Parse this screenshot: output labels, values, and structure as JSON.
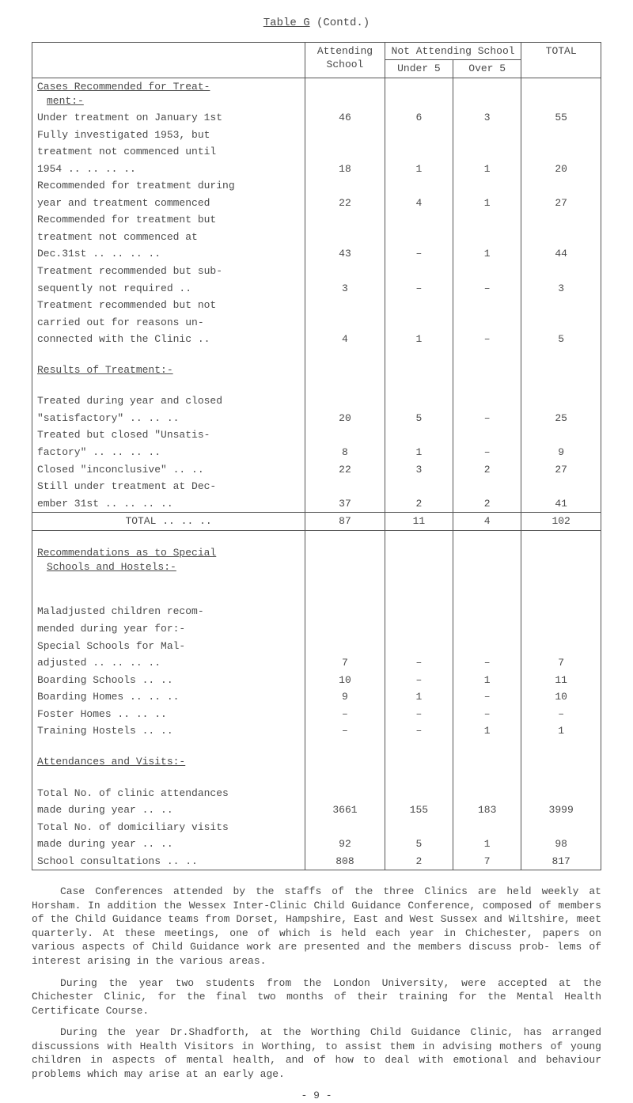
{
  "page": {
    "title_prefix": "Table G",
    "title_suffix": " (Contd.)",
    "pagenum": "- 9 -"
  },
  "header": {
    "attending": "Attending School",
    "not_attending": "Not Attending School",
    "total": "TOTAL",
    "under5": "Under 5",
    "over5": "Over 5"
  },
  "sections": {
    "cases_hdr": "Cases Recommended for Treat-",
    "cases_hdr2": "ment:-",
    "results_hdr": "Results of Treatment:-",
    "recs_hdr1": "Recommendations as to Special",
    "recs_hdr2": "Schools and Hostels:-",
    "att_hdr": "Attendances and Visits:-",
    "total_label": "TOTAL        ..  ..  .."
  },
  "rows": {
    "r1": {
      "l": "Under treatment on January 1st",
      "a": "46",
      "u": "6",
      "o": "3",
      "t": "55"
    },
    "r1b": {
      "l": "Fully investigated 1953, but"
    },
    "r1c": {
      "l": "treatment not commenced until"
    },
    "r2": {
      "l": "1954        ..  ..  ..  ..",
      "a": "18",
      "u": "1",
      "o": "1",
      "t": "20"
    },
    "r2b": {
      "l": "Recommended for treatment during"
    },
    "r3": {
      "l": "year and treatment commenced",
      "a": "22",
      "u": "4",
      "o": "1",
      "t": "27"
    },
    "r3b": {
      "l": "Recommended for treatment but"
    },
    "r3c": {
      "l": "treatment not commenced at"
    },
    "r4": {
      "l": "Dec.31st   ..   ..   ..   ..",
      "a": "43",
      "u": "–",
      "o": "1",
      "t": "44"
    },
    "r4b": {
      "l": "Treatment recommended but sub-"
    },
    "r5": {
      "l": "sequently not required     ..",
      "a": "3",
      "u": "–",
      "o": "–",
      "t": "3"
    },
    "r5b": {
      "l": "Treatment recommended but not"
    },
    "r5c": {
      "l": "carried out for reasons un-"
    },
    "r6": {
      "l": "connected with the Clinic ..",
      "a": "4",
      "u": "1",
      "o": "–",
      "t": "5"
    },
    "r7a": {
      "l": "Treated during year and closed"
    },
    "r7": {
      "l": "\"satisfactory\"  ..   ..   ..",
      "a": "20",
      "u": "5",
      "o": "–",
      "t": "25"
    },
    "r7b": {
      "l": "Treated but closed \"Unsatis-"
    },
    "r8": {
      "l": "factory\"   ..  ..   ..   ..",
      "a": "8",
      "u": "1",
      "o": "–",
      "t": "9"
    },
    "r9": {
      "l": "Closed \"inconclusive\" ..   ..",
      "a": "22",
      "u": "3",
      "o": "2",
      "t": "27"
    },
    "r9b": {
      "l": "Still under treatment at Dec-"
    },
    "r10": {
      "l": "ember 31st ..   ..   ..   ..",
      "a": "37",
      "u": "2",
      "o": "2",
      "t": "41"
    },
    "tot": {
      "a": "87",
      "u": "11",
      "o": "4",
      "t": "102"
    },
    "r11a": {
      "l": "Maladjusted children recom-"
    },
    "r11b": {
      "l": "mended during year for:-"
    },
    "r11c": {
      "l": "Special Schools for Mal-"
    },
    "r11": {
      "l": "adjusted   ..  ..   ..   ..",
      "a": "7",
      "u": "–",
      "o": "–",
      "t": "7"
    },
    "r12": {
      "l": "Boarding Schools      ..   ..",
      "a": "10",
      "u": "–",
      "o": "1",
      "t": "11"
    },
    "r13": {
      "l": "Boarding Homes  ..   ..   ..",
      "a": "9",
      "u": "1",
      "o": "–",
      "t": "10"
    },
    "r14": {
      "l": "Foster Homes    ..   ..   ..",
      "a": "–",
      "u": "–",
      "o": "–",
      "t": "–"
    },
    "r15": {
      "l": "Training Hostels     ..   ..",
      "a": "–",
      "u": "–",
      "o": "1",
      "t": "1"
    },
    "r16a": {
      "l": "Total No. of clinic attendances"
    },
    "r16": {
      "l": "made during year     ..   ..",
      "a": "3661",
      "u": "155",
      "o": "183",
      "t": "3999"
    },
    "r16b": {
      "l": "Total No. of domiciliary visits"
    },
    "r17": {
      "l": "made during year     ..   ..",
      "a": "92",
      "u": "5",
      "o": "1",
      "t": "98"
    },
    "r18": {
      "l": "School consultations  ..   ..",
      "a": "808",
      "u": "2",
      "o": "7",
      "t": "817"
    }
  },
  "paras": {
    "p1": "Case Conferences attended by the staffs of the three Clinics are held weekly at Horsham.  In addition the Wessex Inter-Clinic Child Guidance Conference, composed of members of the Child Guidance teams from Dorset, Hampshire, East and West Sussex and Wiltshire, meet quarterly.  At these meetings, one of which is held each year in Chichester, papers on various aspects of Child Guidance work are presented and the members discuss prob- lems of interest arising in the various areas.",
    "p2": "During the year two students from the London University, were accepted at the Chichester Clinic, for the final two months of their training for the Mental Health Certificate Course.",
    "p3": "During the year Dr.Shadforth, at the Worthing Child Guidance Clinic, has arranged discussions with Health Visitors in Worthing, to assist them in advising mothers of young children in aspects of mental health, and of how to deal with emotional and behaviour problems which may arise at an early age."
  }
}
